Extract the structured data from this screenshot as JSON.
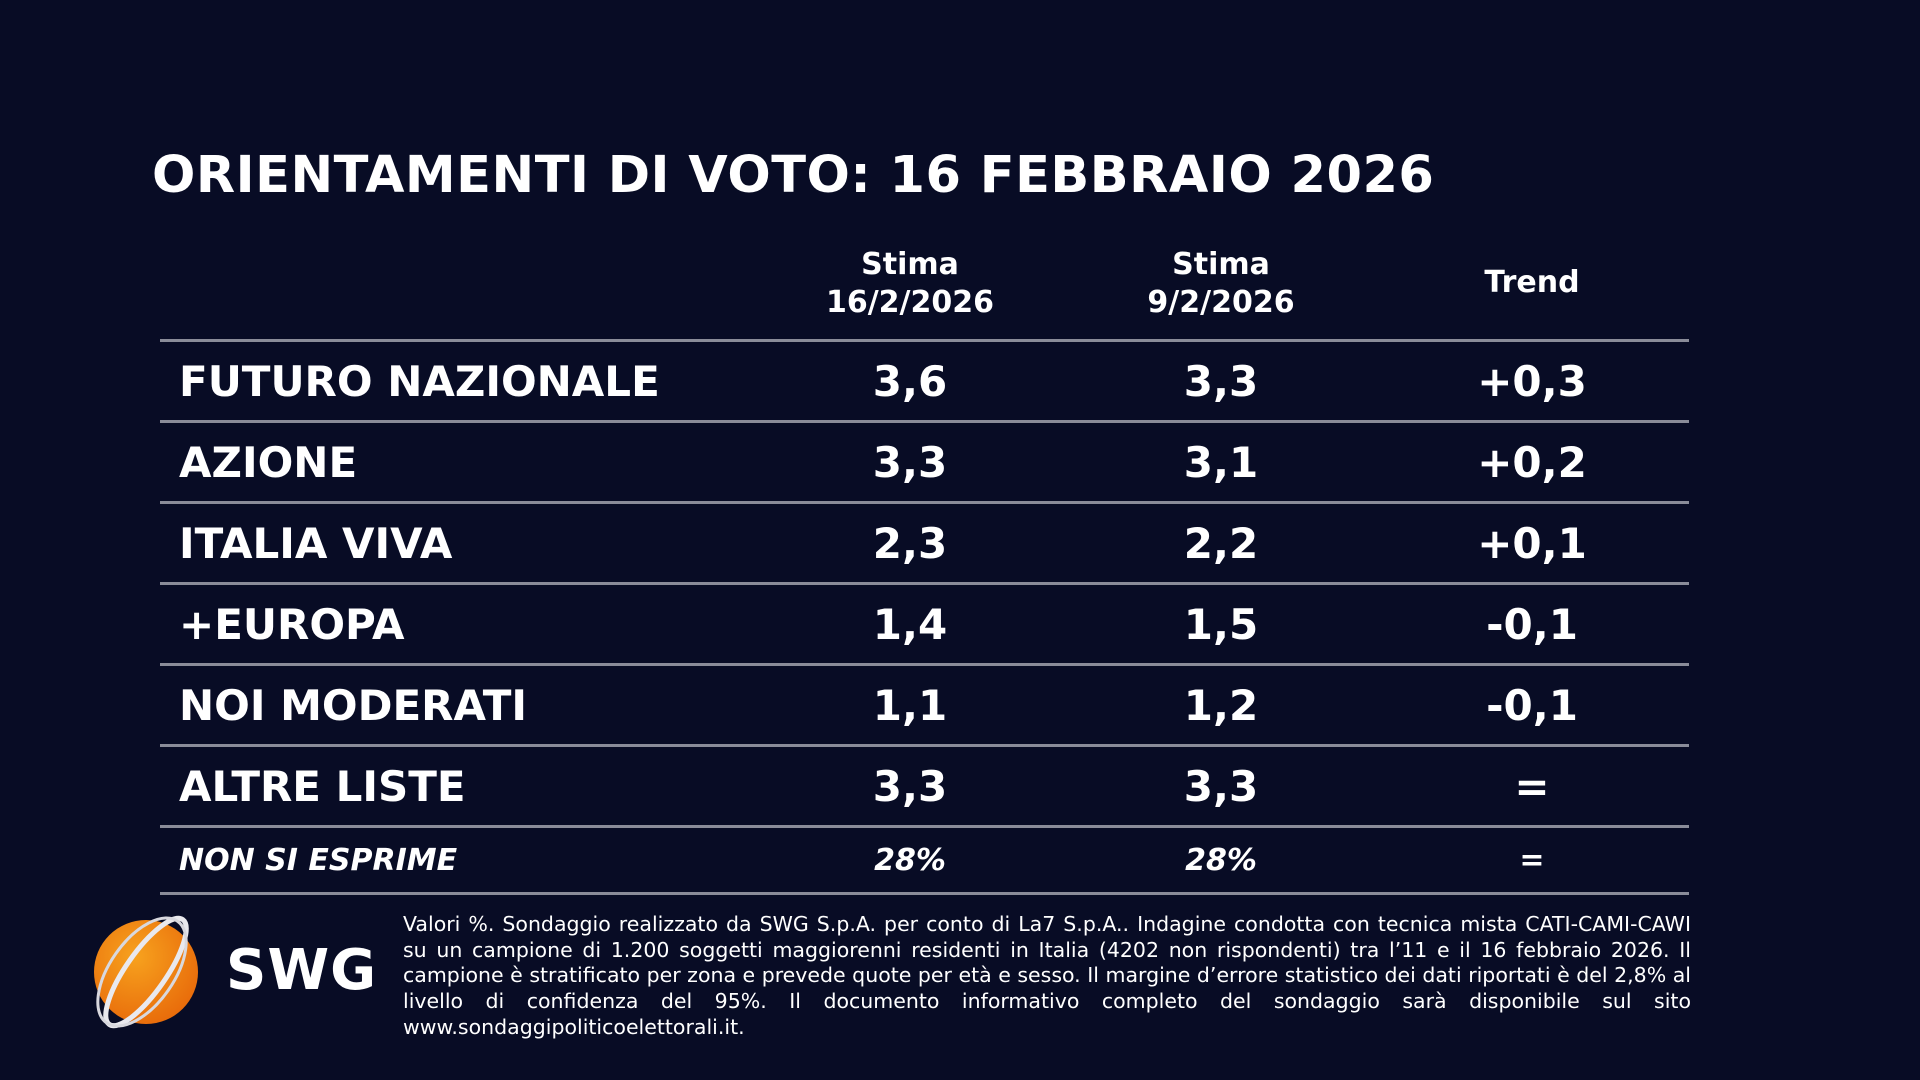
{
  "title": "ORIENTAMENTI DI VOTO: 16 FEBBRAIO 2026",
  "table": {
    "headers": [
      {
        "line1": "Stima",
        "line2": "16/2/2026"
      },
      {
        "line1": "Stima",
        "line2": "9/2/2026"
      },
      {
        "line1": "Trend",
        "line2": ""
      }
    ],
    "rows": [
      {
        "party": "FUTURO NAZIONALE",
        "current": "3,6",
        "previous": "3,3",
        "trend": "+0,3"
      },
      {
        "party": "AZIONE",
        "current": "3,3",
        "previous": "3,1",
        "trend": "+0,2"
      },
      {
        "party": "ITALIA VIVA",
        "current": "2,3",
        "previous": "2,2",
        "trend": "+0,1"
      },
      {
        "party": "+EUROPA",
        "current": "1,4",
        "previous": "1,5",
        "trend": "-0,1"
      },
      {
        "party": "NOI MODERATI",
        "current": "1,1",
        "previous": "1,2",
        "trend": "-0,1"
      },
      {
        "party": "ALTRE LISTE",
        "current": "3,3",
        "previous": "3,3",
        "trend": "="
      },
      {
        "party": "NON SI ESPRIME",
        "current": "28%",
        "previous": "28%",
        "trend": "="
      }
    ]
  },
  "logo": {
    "text": "SWG",
    "accent": "#f28c12"
  },
  "footer": "Valori %. Sondaggio realizzato da SWG S.p.A. per conto di La7 S.p.A.. Indagine condotta con tecnica mista CATI-CAMI-CAWI su un campione di 1.200 soggetti maggiorenni residenti in Italia (4202 non rispondenti) tra l’11 e il 16 febbraio 2026. Il campione è stratificato per zona e prevede quote per età e sesso. Il margine d’errore statistico dei dati riportati è del 2,8% al livello di confidenza del 95%. Il documento informativo completo del sondaggio sarà disponibile sul sito www.sondaggipoliticoelettorali.it.",
  "colors": {
    "background": "#080c25",
    "divider": "#8a8c99"
  }
}
